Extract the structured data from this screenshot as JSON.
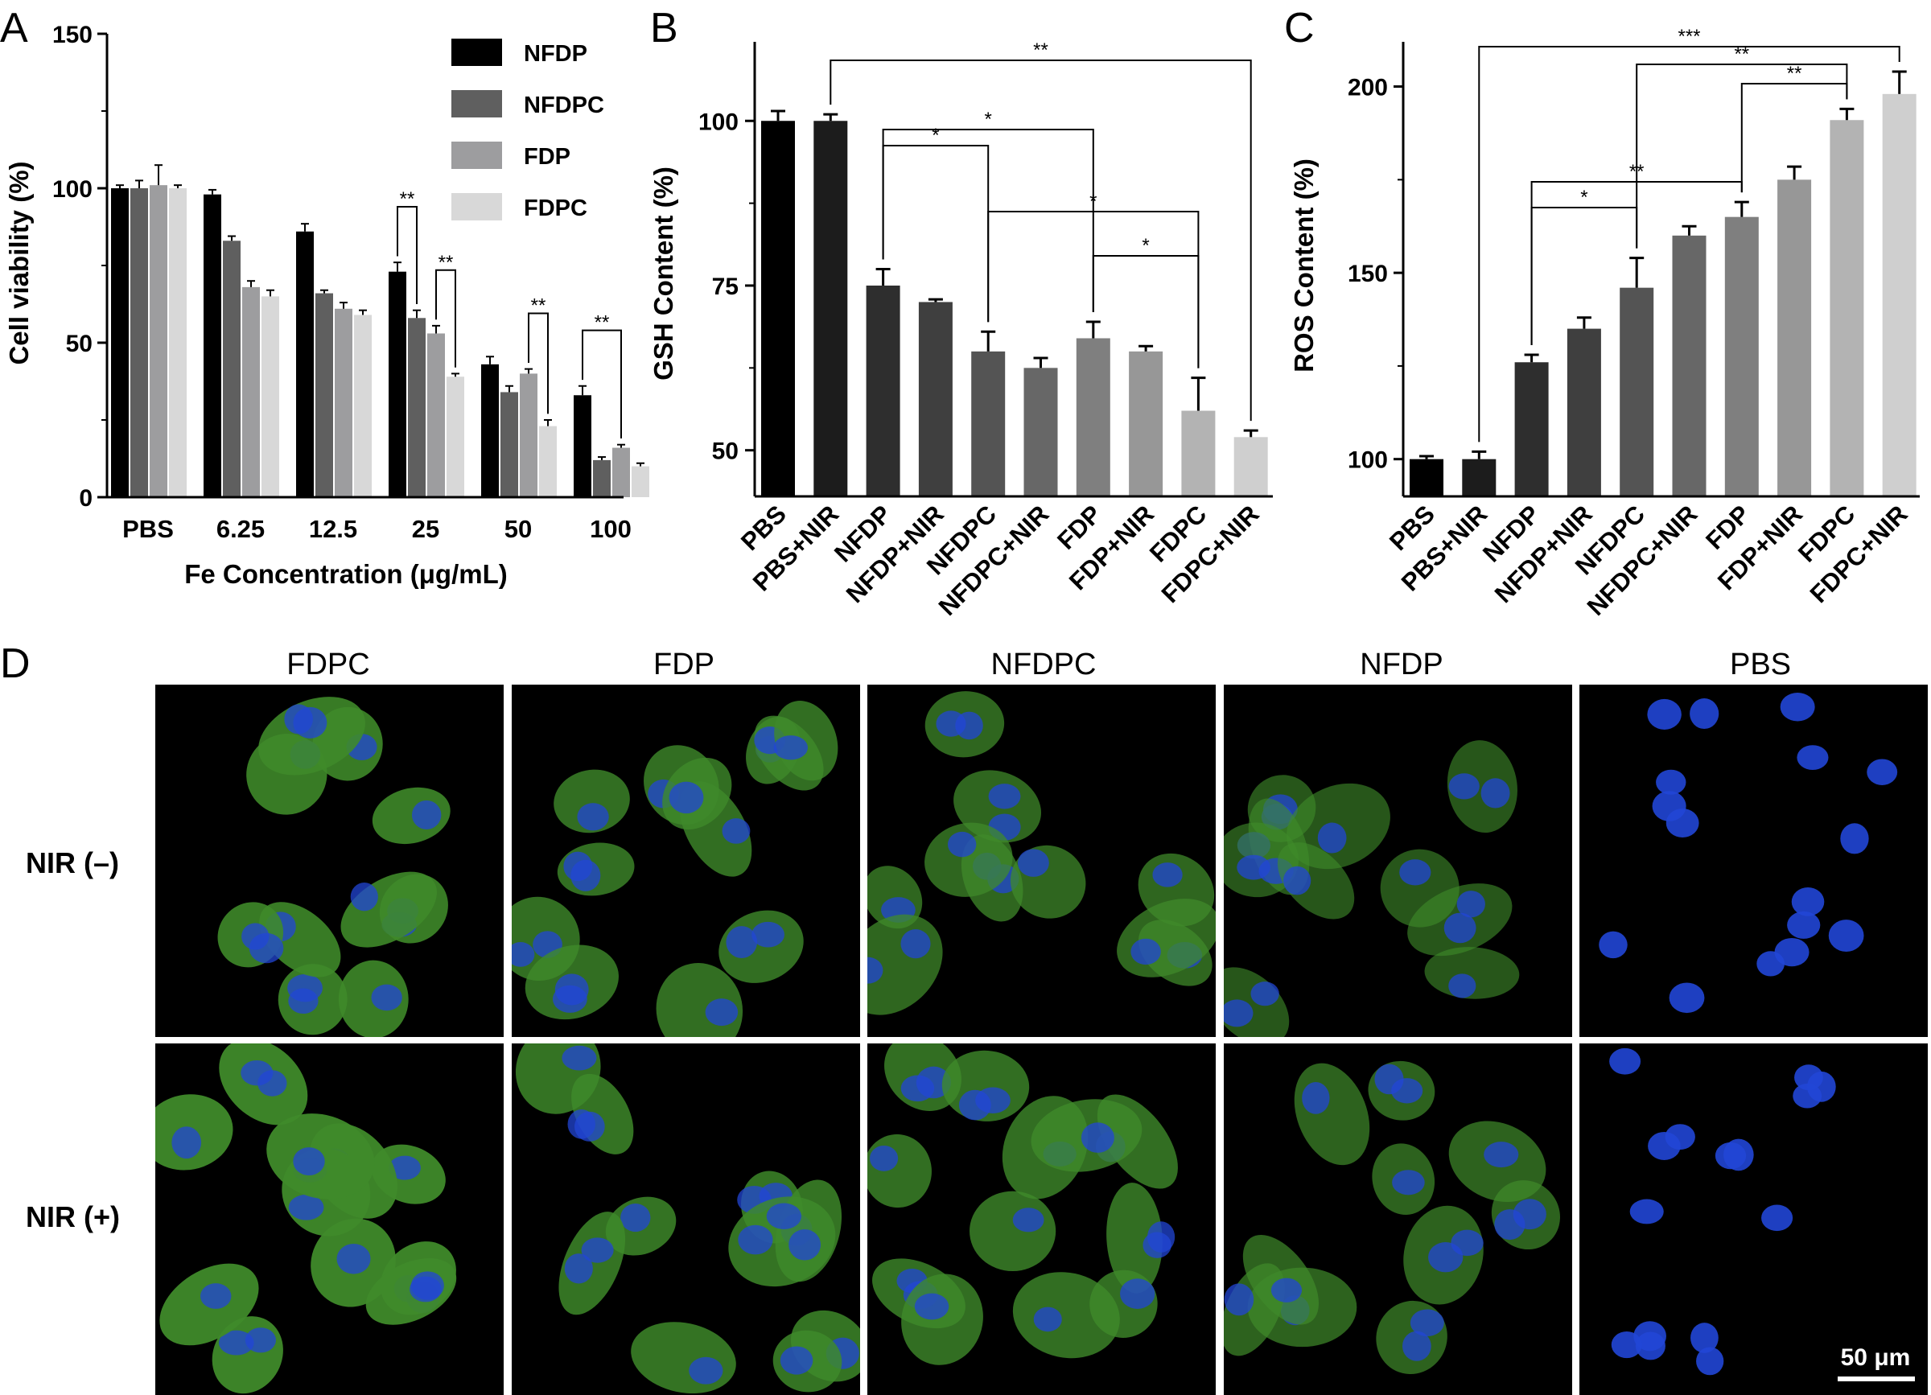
{
  "panel_letters": {
    "a": "A",
    "b": "B",
    "c": "C",
    "d": "D"
  },
  "chart_data": [
    {
      "panel": "A",
      "type": "bar",
      "xlabel": "Fe Concentration (μg/mL)",
      "ylabel": "Cell viability (%)",
      "ylim": [
        0,
        150
      ],
      "yticks": [
        0,
        50,
        100,
        150
      ],
      "legend_position": "top-right",
      "categories": [
        "PBS",
        "6.25",
        "12.5",
        "25",
        "50",
        "100"
      ],
      "series": [
        {
          "name": "NFDP",
          "color": "#000000",
          "values": [
            100,
            98,
            86,
            73,
            43,
            33
          ],
          "errors": [
            1,
            1.5,
            2.5,
            3,
            2.5,
            3
          ]
        },
        {
          "name": "NFDPC",
          "color": "#5f5f5f",
          "values": [
            100,
            83,
            66,
            58,
            34,
            12
          ],
          "errors": [
            2.5,
            1.5,
            1,
            2.5,
            2,
            1
          ]
        },
        {
          "name": "FDP",
          "color": "#9d9d9f",
          "values": [
            101,
            68,
            61,
            53,
            40,
            16
          ],
          "errors": [
            6.5,
            2,
            2,
            2.5,
            1.5,
            1
          ]
        },
        {
          "name": "FDPC",
          "color": "#d8d8d8",
          "values": [
            100,
            65,
            59,
            39,
            23,
            10
          ],
          "errors": [
            1,
            2,
            1.5,
            1,
            2,
            1
          ]
        }
      ],
      "significance": [
        {
          "label": "**",
          "category": "25",
          "from": "NFDP",
          "to": "NFDPC"
        },
        {
          "label": "**",
          "category": "25",
          "from": "FDP",
          "to": "FDPC"
        },
        {
          "label": "**",
          "category": "50",
          "from": "FDP",
          "to": "FDPC"
        },
        {
          "label": "**",
          "category": "100",
          "from": "NFDP",
          "to": "FDP"
        }
      ]
    },
    {
      "panel": "B",
      "type": "bar",
      "ylabel": "GSH Content (%)",
      "ylim": [
        43,
        112
      ],
      "yticks": [
        50,
        75,
        100
      ],
      "categories": [
        "PBS",
        "PBS+NIR",
        "NFDP",
        "NFDP+NIR",
        "NFDPC",
        "NFDPC+NIR",
        "FDP",
        "FDP+NIR",
        "FDPC",
        "FDPC+NIR"
      ],
      "values": [
        100,
        100,
        75,
        72.5,
        65,
        62.5,
        67,
        65,
        56,
        52
      ],
      "errors": [
        1.5,
        1,
        2.5,
        0.4,
        3,
        1.5,
        2.5,
        0.8,
        5,
        1
      ],
      "colors": [
        "#000000",
        "#1c1c1c",
        "#2e2e2e",
        "#3f3f3f",
        "#545454",
        "#676767",
        "#7f7f7f",
        "#979797",
        "#b3b3b3",
        "#cfcfcf"
      ],
      "significance": [
        {
          "label": "**",
          "from": "PBS+NIR",
          "to": "FDPC+NIR"
        },
        {
          "label": "*",
          "from": "NFDP",
          "to": "FDP"
        },
        {
          "label": "*",
          "from": "NFDP",
          "to": "NFDPC"
        },
        {
          "label": "*",
          "from": "NFDPC",
          "to": "FDPC"
        },
        {
          "label": "*",
          "from": "FDP",
          "to": "FDPC"
        }
      ]
    },
    {
      "panel": "C",
      "type": "bar",
      "ylabel": "ROS Content (%)",
      "ylim": [
        90,
        212
      ],
      "yticks": [
        100,
        150,
        200
      ],
      "categories": [
        "PBS",
        "PBS+NIR",
        "NFDP",
        "NFDP+NIR",
        "NFDPC",
        "NFDPC+NIR",
        "FDP",
        "FDP+NIR",
        "FDPC",
        "FDPC+NIR"
      ],
      "values": [
        100,
        100,
        126,
        135,
        146,
        160,
        165,
        175,
        191,
        198
      ],
      "errors": [
        0.8,
        2,
        2,
        3,
        8,
        2.5,
        4,
        3.5,
        3,
        6
      ],
      "colors": [
        "#000000",
        "#1c1c1c",
        "#2e2e2e",
        "#3f3f3f",
        "#545454",
        "#676767",
        "#7f7f7f",
        "#979797",
        "#b3b3b3",
        "#cfcfcf"
      ],
      "significance": [
        {
          "label": "***",
          "from": "PBS+NIR",
          "to": "FDPC+NIR"
        },
        {
          "label": "**",
          "from": "NFDPC",
          "to": "FDPC"
        },
        {
          "label": "**",
          "from": "FDP",
          "to": "FDPC"
        },
        {
          "label": "**",
          "from": "NFDP",
          "to": "FDP"
        },
        {
          "label": "*",
          "from": "NFDP",
          "to": "NFDPC"
        }
      ]
    }
  ],
  "micrographs": {
    "columns": [
      "FDPC",
      "FDP",
      "NFDPC",
      "NFDP",
      "PBS"
    ],
    "rows": [
      "NIR (–)",
      "NIR (+)"
    ],
    "green_intensity": [
      [
        0.9,
        0.75,
        0.65,
        0.45,
        0.0
      ],
      [
        1.0,
        0.8,
        0.75,
        0.6,
        0.0
      ]
    ],
    "scale_bar": "50 μm",
    "colors": {
      "nucleus": "#2146d6",
      "cytoplasm": "#3f8a2a",
      "background": "#000000"
    }
  }
}
